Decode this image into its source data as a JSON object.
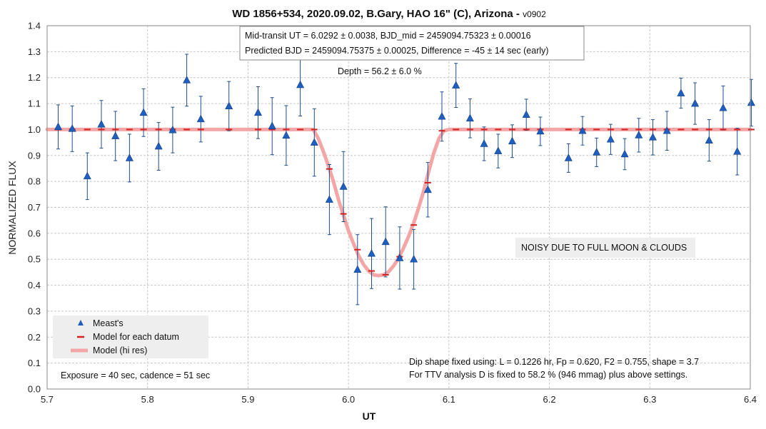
{
  "chart_data": {
    "type": "scatter",
    "title": "WD 1856+534, 2020.09.02, B.Gary, HAO 16\" (C), Arizona - ",
    "title_suffix": "v0902",
    "xlabel": "UT",
    "ylabel": "NORMALIZED FLUX",
    "xlim": [
      5.7,
      6.4
    ],
    "ylim": [
      0.0,
      1.4
    ],
    "x_ticks": [
      "5.7",
      "5.8",
      "5.9",
      "6.0",
      "6.1",
      "6.2",
      "6.3",
      "6.4"
    ],
    "y_ticks": [
      "0.0",
      "0.1",
      "0.2",
      "0.3",
      "0.4",
      "0.5",
      "0.6",
      "0.7",
      "0.8",
      "0.9",
      "1.0",
      "1.1",
      "1.2",
      "1.3",
      "1.4"
    ],
    "grid": true,
    "legend_position": "bottom-left",
    "legend": [
      "Meast's",
      "Model for each datum",
      "Model (hi res)"
    ],
    "colors": {
      "measured": "#1f5fbf",
      "errorbar": "#1f4e8c",
      "model_datum": "#d42020",
      "model_hires": "#f4a6a6",
      "grid": "#c8c8c8",
      "box_fill": "#eeeeee"
    },
    "annotations": {
      "fit_line1": "Mid-transit UT = 6.0292 ± 0.0038, BJD_mid = 2459094.75323 ± 0.00016",
      "fit_line2": "Predicted BJD = 2459094.75375 ± 0.00025, Difference = -45 ± 14 sec (early)",
      "depth": "Depth = 56.2 ± 6.0 %",
      "noise_note": "NOISY DUE TO FULL MOON & CLOUDS",
      "shape_line1": "Dip shape fixed using:  L = 0.1226 hr, Fp = 0.620, F2 = 0.755, shape = 3.7",
      "shape_line2": "For TTV analysis D is fixed  to 58.2 % (946 mmag) plus above settings.",
      "exposure": "Exposure = 40 sec, cadence = 51 sec"
    },
    "series": [
      {
        "name": "Meast's",
        "points": [
          [
            5.711,
            1.01,
            0.085
          ],
          [
            5.725,
            1.003,
            0.088
          ],
          [
            5.74,
            0.82,
            0.09
          ],
          [
            5.754,
            1.02,
            0.092
          ],
          [
            5.768,
            0.975,
            0.095
          ],
          [
            5.782,
            0.89,
            0.092
          ],
          [
            5.796,
            1.065,
            0.092
          ],
          [
            5.811,
            0.935,
            0.092
          ],
          [
            5.825,
            0.998,
            0.088
          ],
          [
            5.839,
            1.19,
            0.1
          ],
          [
            5.853,
            1.04,
            0.088
          ],
          [
            5.881,
            1.09,
            0.095
          ],
          [
            5.91,
            1.065,
            0.1
          ],
          [
            5.924,
            1.013,
            0.11
          ],
          [
            5.938,
            0.977,
            0.115
          ],
          [
            5.952,
            1.172,
            0.12
          ],
          [
            5.966,
            0.95,
            0.13
          ],
          [
            5.981,
            0.73,
            0.135
          ],
          [
            5.995,
            0.78,
            0.135
          ],
          [
            6.009,
            0.46,
            0.135
          ],
          [
            6.023,
            0.522,
            0.135
          ],
          [
            6.037,
            0.567,
            0.135
          ],
          [
            6.051,
            0.505,
            0.12
          ],
          [
            6.065,
            0.5,
            0.115
          ],
          [
            6.079,
            0.768,
            0.105
          ],
          [
            6.093,
            1.05,
            0.095
          ],
          [
            6.107,
            1.17,
            0.085
          ],
          [
            6.121,
            1.043,
            0.075
          ],
          [
            6.135,
            0.945,
            0.065
          ],
          [
            6.149,
            0.917,
            0.065
          ],
          [
            6.163,
            0.955,
            0.063
          ],
          [
            6.177,
            1.057,
            0.06
          ],
          [
            6.191,
            0.993,
            0.055
          ],
          [
            6.219,
            0.89,
            0.055
          ],
          [
            6.233,
            0.995,
            0.055
          ],
          [
            6.247,
            0.912,
            0.055
          ],
          [
            6.261,
            0.962,
            0.058
          ],
          [
            6.275,
            0.905,
            0.06
          ],
          [
            6.289,
            0.978,
            0.065
          ],
          [
            6.303,
            0.97,
            0.068
          ],
          [
            6.317,
            0.995,
            0.075
          ],
          [
            6.331,
            1.14,
            0.058
          ],
          [
            6.345,
            1.1,
            0.08
          ],
          [
            6.359,
            0.958,
            0.08
          ],
          [
            6.373,
            1.083,
            0.085
          ],
          [
            6.387,
            0.915,
            0.09
          ],
          [
            6.401,
            1.103,
            0.09
          ]
        ]
      },
      {
        "name": "Model for each datum",
        "points": [
          [
            5.711,
            1.0
          ],
          [
            5.725,
            1.0
          ],
          [
            5.74,
            1.0
          ],
          [
            5.754,
            1.0
          ],
          [
            5.768,
            1.0
          ],
          [
            5.782,
            1.0
          ],
          [
            5.796,
            1.0
          ],
          [
            5.811,
            1.0
          ],
          [
            5.825,
            1.0
          ],
          [
            5.839,
            1.0
          ],
          [
            5.853,
            1.0
          ],
          [
            5.881,
            1.0
          ],
          [
            5.91,
            1.0
          ],
          [
            5.924,
            1.0
          ],
          [
            5.938,
            1.0
          ],
          [
            5.952,
            1.0
          ],
          [
            5.966,
            1.0
          ],
          [
            5.981,
            0.848
          ],
          [
            5.995,
            0.675
          ],
          [
            6.009,
            0.537
          ],
          [
            6.023,
            0.455
          ],
          [
            6.037,
            0.44
          ],
          [
            6.051,
            0.51
          ],
          [
            6.065,
            0.632
          ],
          [
            6.079,
            0.795
          ],
          [
            6.093,
            0.995
          ],
          [
            6.107,
            1.0
          ],
          [
            6.121,
            1.0
          ],
          [
            6.135,
            1.0
          ],
          [
            6.149,
            1.0
          ],
          [
            6.163,
            1.0
          ],
          [
            6.177,
            1.0
          ],
          [
            6.191,
            1.0
          ],
          [
            6.219,
            1.0
          ],
          [
            6.233,
            1.0
          ],
          [
            6.247,
            1.0
          ],
          [
            6.261,
            1.0
          ],
          [
            6.275,
            1.0
          ],
          [
            6.289,
            1.0
          ],
          [
            6.303,
            1.0
          ],
          [
            6.317,
            1.0
          ],
          [
            6.331,
            1.0
          ],
          [
            6.345,
            1.0
          ],
          [
            6.359,
            1.0
          ],
          [
            6.373,
            1.0
          ],
          [
            6.387,
            1.0
          ],
          [
            6.401,
            1.0
          ]
        ]
      },
      {
        "name": "Model (hi res)",
        "points": [
          [
            5.7,
            1.0
          ],
          [
            5.965,
            1.0
          ],
          [
            5.97,
            0.965
          ],
          [
            5.975,
            0.915
          ],
          [
            5.98,
            0.86
          ],
          [
            5.985,
            0.8
          ],
          [
            5.99,
            0.73
          ],
          [
            5.995,
            0.67
          ],
          [
            6.0,
            0.61
          ],
          [
            6.005,
            0.56
          ],
          [
            6.01,
            0.515
          ],
          [
            6.015,
            0.48
          ],
          [
            6.02,
            0.455
          ],
          [
            6.025,
            0.44
          ],
          [
            6.03,
            0.437
          ],
          [
            6.035,
            0.44
          ],
          [
            6.04,
            0.452
          ],
          [
            6.045,
            0.475
          ],
          [
            6.05,
            0.505
          ],
          [
            6.055,
            0.545
          ],
          [
            6.06,
            0.59
          ],
          [
            6.065,
            0.64
          ],
          [
            6.07,
            0.7
          ],
          [
            6.075,
            0.765
          ],
          [
            6.08,
            0.84
          ],
          [
            6.085,
            0.91
          ],
          [
            6.09,
            0.965
          ],
          [
            6.095,
            0.995
          ],
          [
            6.1,
            1.0
          ],
          [
            6.4,
            1.0
          ]
        ]
      }
    ]
  }
}
